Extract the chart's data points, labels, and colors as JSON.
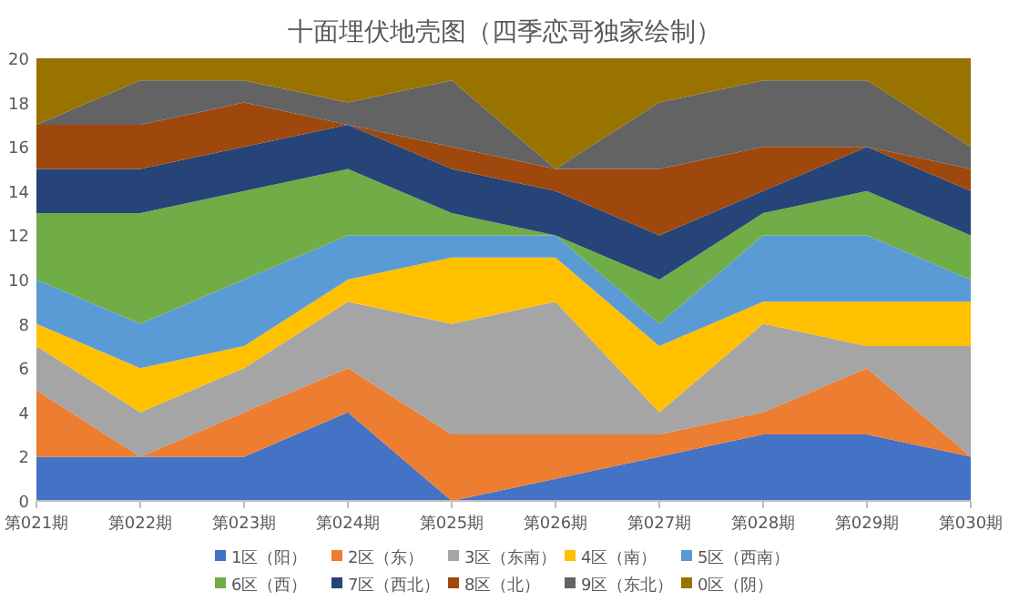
{
  "chart_data": {
    "type": "area",
    "stacked": true,
    "title": "十面埋伏地壳图（四季恋哥独家绘制）",
    "categories": [
      "第021期",
      "第022期",
      "第023期",
      "第024期",
      "第025期",
      "第026期",
      "第027期",
      "第028期",
      "第029期",
      "第030期"
    ],
    "ylim": [
      0,
      20
    ],
    "yticks": [
      0,
      2,
      4,
      6,
      8,
      10,
      12,
      14,
      16,
      18,
      20
    ],
    "grid": false,
    "legend": "bottom",
    "series": [
      {
        "name": "1区（阳）",
        "color": "#4472c4",
        "values": [
          2,
          2,
          2,
          4,
          0,
          1,
          2,
          3,
          3,
          2
        ]
      },
      {
        "name": "2区（东）",
        "color": "#ed7d31",
        "values": [
          3,
          0,
          2,
          2,
          3,
          2,
          1,
          1,
          3,
          0
        ]
      },
      {
        "name": "3区（东南）",
        "color": "#a5a5a5",
        "values": [
          2,
          2,
          2,
          3,
          5,
          6,
          1,
          4,
          1,
          5
        ]
      },
      {
        "name": "4区（南）",
        "color": "#ffc000",
        "values": [
          1,
          2,
          1,
          1,
          3,
          2,
          3,
          1,
          2,
          2
        ]
      },
      {
        "name": "5区（西南）",
        "color": "#5b9bd5",
        "values": [
          2,
          2,
          3,
          2,
          1,
          1,
          1,
          3,
          3,
          1
        ]
      },
      {
        "name": "6区（西）",
        "color": "#70ad47",
        "values": [
          3,
          5,
          4,
          3,
          1,
          0,
          2,
          1,
          2,
          2
        ]
      },
      {
        "name": "7区（西北）",
        "color": "#264478",
        "values": [
          2,
          2,
          2,
          2,
          2,
          2,
          2,
          1,
          2,
          2
        ]
      },
      {
        "name": "8区（北）",
        "color": "#9e480e",
        "values": [
          2,
          2,
          2,
          0,
          1,
          1,
          3,
          2,
          0,
          1
        ]
      },
      {
        "name": "9区（东北）",
        "color": "#636363",
        "values": [
          0,
          2,
          1,
          1,
          3,
          0,
          3,
          3,
          3,
          1
        ]
      },
      {
        "name": "0区（阴）",
        "color": "#997300",
        "values": [
          3,
          1,
          1,
          2,
          1,
          5,
          2,
          1,
          1,
          4
        ]
      }
    ]
  }
}
